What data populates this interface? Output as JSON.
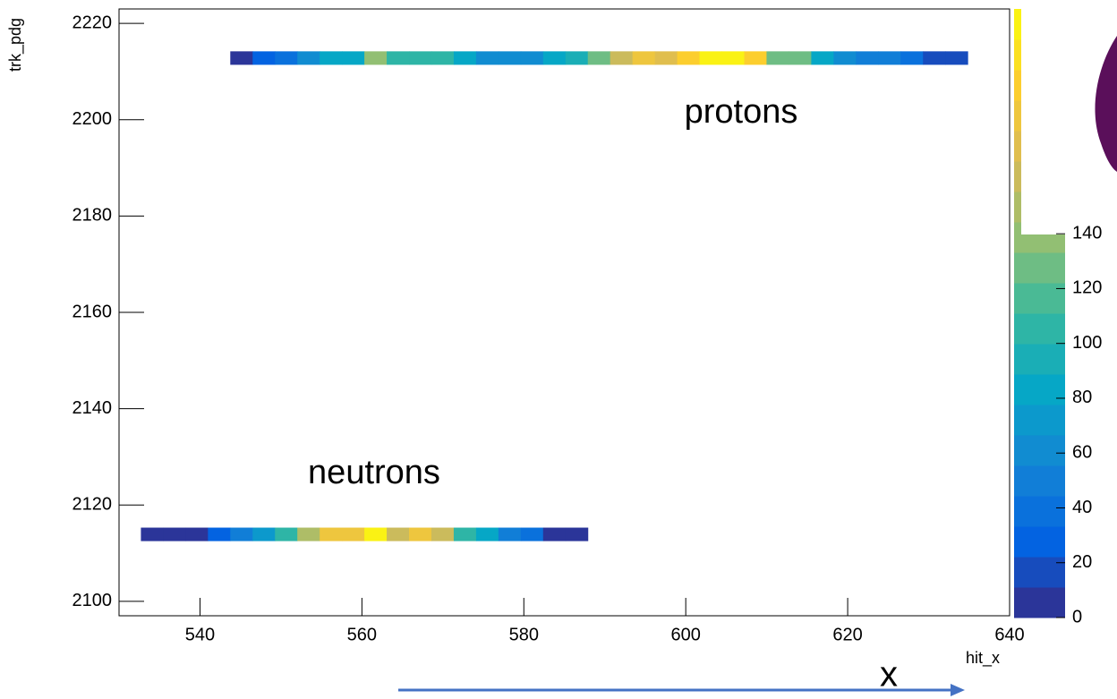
{
  "chart_data": {
    "type": "heatmap",
    "x_label": "hit_x",
    "y_label": "trk_pdg",
    "xlim": [
      530,
      640
    ],
    "xticks": [
      540,
      560,
      580,
      600,
      620,
      640
    ],
    "ylim": [
      2097,
      2223
    ],
    "yticks": [
      2100,
      2120,
      2140,
      2160,
      2180,
      2200,
      2220
    ],
    "zlim": [
      0,
      222
    ],
    "zticks": [
      0,
      20,
      40,
      60,
      80,
      100,
      120,
      140
    ],
    "contours": 20,
    "colormap": [
      "#352a87",
      "#0363e1",
      "#1485d4",
      "#06a7c6",
      "#38b99e",
      "#92bf73",
      "#d9ba56",
      "#fcce2e",
      "#f9fb0e"
    ],
    "xbins": [
      532.7,
      535.46,
      538.22,
      540.98,
      543.74,
      546.5,
      549.26,
      552.02,
      554.78,
      557.54,
      560.3,
      563.06,
      565.82,
      568.58,
      571.34,
      574.1,
      576.86,
      579.62,
      582.38,
      585.14,
      587.9,
      590.66,
      593.42,
      596.18,
      598.94,
      601.7,
      604.46,
      607.22,
      609.98,
      612.74,
      615.5,
      618.26,
      621.02,
      623.78,
      626.54,
      629.3,
      632.06,
      634.82
    ],
    "rows": [
      {
        "y": [
          2211.4,
          2214.2
        ],
        "values": [
          null,
          null,
          null,
          null,
          8,
          30,
          40,
          60,
          80,
          85,
          135,
          105,
          105,
          100,
          85,
          65,
          65,
          65,
          80,
          95,
          130,
          165,
          180,
          170,
          195,
          215,
          215,
          195,
          130,
          125,
          85,
          65,
          45,
          45,
          35,
          12,
          12
        ]
      },
      {
        "y": [
          2112.5,
          2115.3
        ],
        "values": [
          8,
          8,
          8,
          30,
          45,
          75,
          100,
          150,
          185,
          180,
          215,
          165,
          180,
          165,
          105,
          80,
          50,
          35,
          10,
          10,
          null,
          null,
          null,
          null,
          null,
          null,
          null,
          null,
          null,
          null,
          null,
          null,
          null,
          null,
          null,
          null,
          null
        ]
      }
    ],
    "annotations": [
      "protons",
      "neutrons",
      "x"
    ]
  }
}
